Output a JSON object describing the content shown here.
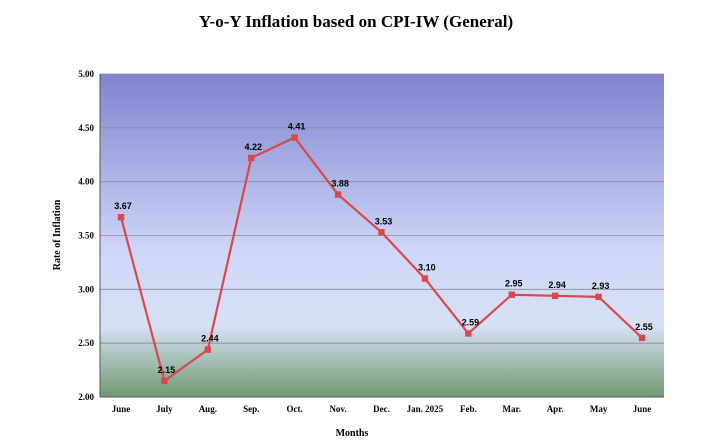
{
  "chart_data": {
    "type": "line",
    "title": "Y-o-Y Inflation based on CPI-IW (General)",
    "xlabel": "Months",
    "ylabel": "Rate of Inflation",
    "categories": [
      "June",
      "July",
      "Aug.",
      "Sep.",
      "Oct.",
      "Nov.",
      "Dec.",
      "Jan. 2025",
      "Feb.",
      "Mar.",
      "Apr.",
      "May",
      "June"
    ],
    "series": [
      {
        "values": [
          3.67,
          2.15,
          2.44,
          4.22,
          4.41,
          3.88,
          3.53,
          3.1,
          2.59,
          2.95,
          2.94,
          2.93,
          2.55
        ],
        "data_labels": [
          "3.67",
          "2.15",
          "2.44",
          "4.22",
          "4.41",
          "3.88",
          "3.53",
          "3.10",
          "2.59",
          "2.95",
          "2.94",
          "2.93",
          "2.55"
        ],
        "color": "#d9484a"
      }
    ],
    "ylim": [
      2.0,
      5.0
    ],
    "yticks": [
      "2.00",
      "2.50",
      "3.00",
      "3.50",
      "4.00",
      "4.50",
      "5.00"
    ],
    "grid": true,
    "legend": "none",
    "background_gradient": [
      "#7f84cf",
      "#cfd6f7",
      "#d7e1f5",
      "#6f9a72"
    ]
  }
}
